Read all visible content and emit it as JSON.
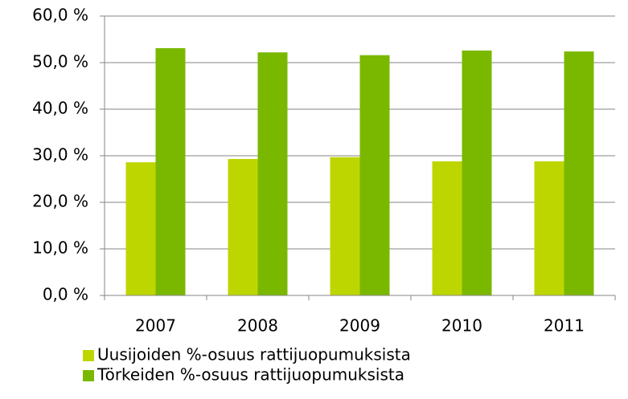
{
  "chart_data": {
    "type": "bar",
    "categories": [
      "2007",
      "2008",
      "2009",
      "2010",
      "2011"
    ],
    "series": [
      {
        "name": "Uusijoiden %-osuus rattijuopumuksista",
        "color": "#bed600",
        "values": [
          28.6,
          29.3,
          29.7,
          28.8,
          28.8
        ]
      },
      {
        "name": "Törkeiden %-osuus rattijuopumuksista",
        "color": "#7ab800",
        "values": [
          53.1,
          52.2,
          51.6,
          52.6,
          52.4
        ]
      }
    ],
    "ylim": [
      0,
      60
    ],
    "yticks": [
      {
        "value": 0,
        "label": "0,0 %"
      },
      {
        "value": 10,
        "label": "10,0 %"
      },
      {
        "value": 20,
        "label": "20,0 %"
      },
      {
        "value": 30,
        "label": "30,0 %"
      },
      {
        "value": 40,
        "label": "40,0 %"
      },
      {
        "value": 50,
        "label": "50,0 %"
      },
      {
        "value": 60,
        "label": "60,0 %"
      }
    ],
    "grid": true,
    "legend": "bottom"
  }
}
